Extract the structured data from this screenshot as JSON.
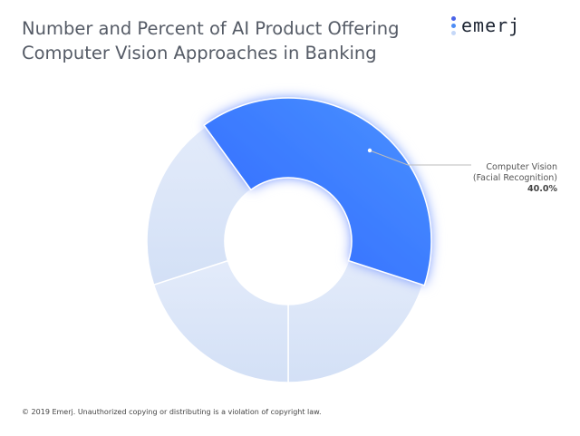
{
  "title_line1": "Number and Percent of AI Product Offering",
  "title_line2": "Computer Vision Approaches in Banking",
  "logo": "emerj",
  "footer": "© 2019 Emerj. Unauthorized copying or distributing is a violation of copyright law.",
  "colors": {
    "highlight": "#3b7bff",
    "muted": "#dce6f8",
    "logo_dots": [
      "#4a63e8",
      "#4e8df5",
      "#c5d8f8"
    ]
  },
  "chart_data": {
    "type": "pie",
    "donut": true,
    "title": "Number and Percent of AI Product Offering Computer Vision Approaches in Banking",
    "slices": [
      {
        "label_line1": "Computer Vision",
        "label_line2": "(Facial Recognition)",
        "value_label": "40.0%",
        "value": 40,
        "highlighted": true
      },
      {
        "value": 20
      },
      {
        "value": 20
      },
      {
        "value": 20
      }
    ]
  }
}
